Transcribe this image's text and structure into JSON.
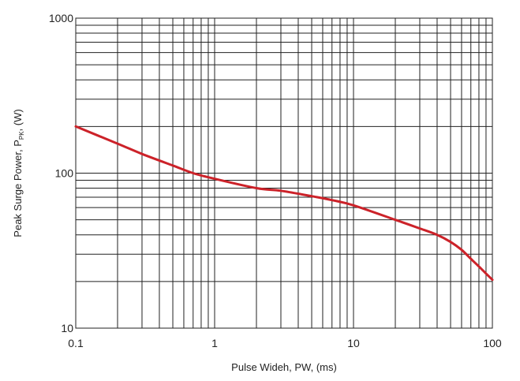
{
  "chart_data": {
    "type": "line",
    "title": "",
    "xlabel": "Pulse Wideh, PW, (ms)",
    "ylabel": {
      "prefix": "Peak Surge Power, P",
      "subscript": "PK",
      "suffix": ", (W)"
    },
    "xscale": "log",
    "yscale": "log",
    "xlim": [
      0.1,
      100
    ],
    "ylim": [
      10,
      1000
    ],
    "xticks": [
      0.1,
      1,
      10,
      100
    ],
    "xtick_labels": [
      "0.1",
      "1",
      "10",
      "100"
    ],
    "yticks": [
      10,
      100,
      1000
    ],
    "ytick_labels": [
      "10",
      "100",
      "1000"
    ],
    "grid": true,
    "legend": "none",
    "series": [
      {
        "color": "#cc2229",
        "x": [
          0.1,
          0.2,
          0.3,
          0.5,
          0.7,
          1,
          2,
          3,
          5,
          7,
          10,
          20,
          30,
          40,
          50,
          60,
          70,
          80,
          90,
          100
        ],
        "y": [
          200,
          155,
          133,
          112,
          100,
          92,
          80,
          77,
          71,
          67,
          62,
          50,
          44,
          40,
          36,
          32,
          28,
          25,
          22.5,
          20.5
        ]
      }
    ]
  }
}
